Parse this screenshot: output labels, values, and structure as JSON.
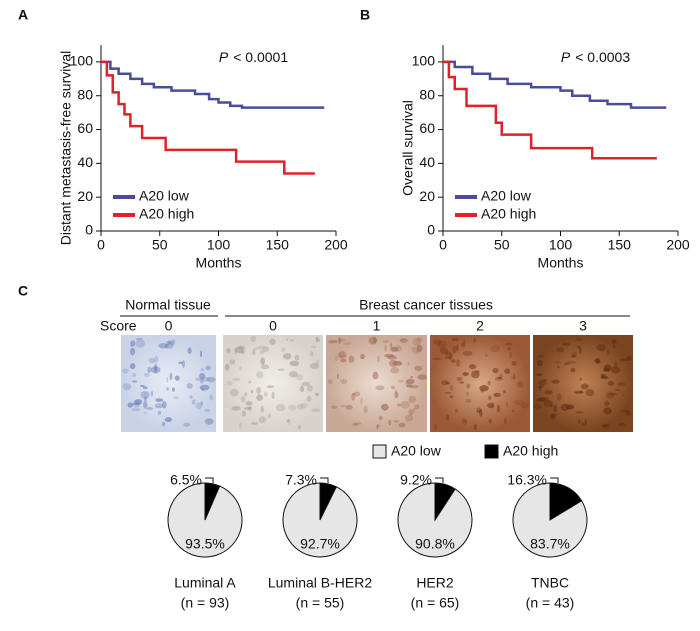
{
  "chart_data": [
    {
      "type": "line",
      "panel_label": "A",
      "annotation": {
        "symbol": "P",
        "text": "< 0.0001"
      },
      "x_label": "Months",
      "y_label": "Distant metastasis-free survival",
      "xlim": [
        0,
        200
      ],
      "xticks": [
        0,
        50,
        100,
        150,
        200
      ],
      "ylim": [
        0,
        110
      ],
      "yticks": [
        0,
        20,
        40,
        60,
        80,
        100
      ],
      "series": [
        {
          "name": "A20 low",
          "color": "#4b4c98",
          "x": [
            0,
            8,
            8,
            15,
            15,
            25,
            25,
            35,
            35,
            45,
            45,
            60,
            60,
            80,
            80,
            92,
            92,
            100,
            100,
            110,
            110,
            120,
            120,
            190
          ],
          "values": [
            100,
            100,
            96,
            96,
            93,
            93,
            90,
            90,
            87,
            87,
            85,
            85,
            83,
            83,
            81,
            81,
            78,
            78,
            76,
            76,
            74,
            74,
            73,
            73
          ]
        },
        {
          "name": "A20 high",
          "color": "#e0202a",
          "x": [
            0,
            5,
            5,
            10,
            10,
            15,
            15,
            20,
            20,
            25,
            25,
            35,
            35,
            55,
            55,
            115,
            115,
            156,
            156,
            182
          ],
          "values": [
            100,
            100,
            92,
            92,
            82,
            82,
            75,
            75,
            69,
            69,
            62,
            62,
            55,
            55,
            48,
            48,
            41,
            41,
            34,
            34
          ]
        }
      ]
    },
    {
      "type": "line",
      "panel_label": "B",
      "annotation": {
        "symbol": "P",
        "text": "< 0.0003"
      },
      "x_label": "Months",
      "y_label": "Overall survival",
      "xlim": [
        0,
        200
      ],
      "xticks": [
        0,
        50,
        100,
        150,
        200
      ],
      "ylim": [
        0,
        110
      ],
      "yticks": [
        0,
        20,
        40,
        60,
        80,
        100
      ],
      "series": [
        {
          "name": "A20 low",
          "color": "#4b4c98",
          "x": [
            0,
            10,
            10,
            25,
            25,
            40,
            40,
            55,
            55,
            75,
            75,
            100,
            100,
            110,
            110,
            125,
            125,
            140,
            140,
            160,
            160,
            190
          ],
          "values": [
            100,
            100,
            97,
            97,
            93,
            93,
            90,
            90,
            87,
            87,
            85,
            85,
            83,
            83,
            80,
            80,
            77,
            77,
            75,
            75,
            73,
            73
          ]
        },
        {
          "name": "A20 high",
          "color": "#e0202a",
          "x": [
            0,
            5,
            5,
            10,
            10,
            20,
            20,
            45,
            45,
            50,
            50,
            75,
            75,
            127,
            127,
            182
          ],
          "values": [
            100,
            100,
            91,
            91,
            84,
            84,
            74,
            74,
            64,
            64,
            57,
            57,
            49,
            49,
            43,
            43
          ]
        }
      ]
    },
    {
      "type": "pie",
      "panel_label": "C",
      "categories": [
        "A20 high",
        "A20 low"
      ],
      "colors": [
        "#000000",
        "#e6e6e6"
      ],
      "pies": [
        {
          "name": "Luminal A",
          "n_label": "(n = 93)",
          "values": [
            6.5,
            93.5
          ],
          "value_labels": [
            "6.5%",
            "93.5%"
          ]
        },
        {
          "name": "Luminal B-HER2",
          "n_label": "(n = 55)",
          "values": [
            7.3,
            92.7
          ],
          "value_labels": [
            "7.3%",
            "92.7%"
          ]
        },
        {
          "name": "HER2",
          "n_label": "(n = 65)",
          "values": [
            9.2,
            90.8
          ],
          "value_labels": [
            "9.2%",
            "90.8%"
          ]
        },
        {
          "name": "TNBC",
          "n_label": "(n = 43)",
          "values": [
            16.3,
            83.7
          ],
          "value_labels": [
            "16.3%",
            "83.7%"
          ]
        }
      ]
    }
  ],
  "tissue_panel": {
    "normal_header": "Normal tissue",
    "cancer_header": "Breast cancer tissues",
    "score_label": "Score",
    "scores": [
      "0",
      "0",
      "1",
      "2",
      "3"
    ]
  }
}
